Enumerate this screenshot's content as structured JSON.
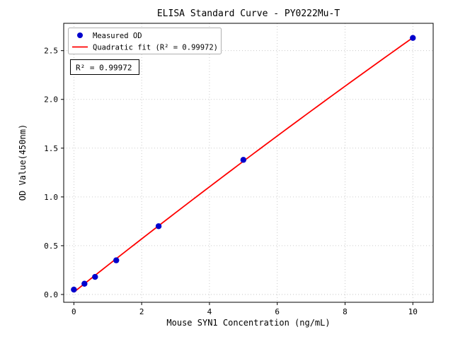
{
  "figure": {
    "background": "#ffffff"
  },
  "chart_data": {
    "type": "scatter",
    "title": "ELISA Standard Curve - PY0222Mu-T",
    "xlabel": "Mouse SYN1 Concentration (ng/mL)",
    "ylabel": "OD Value(450nm)",
    "xlim": [
      -0.3,
      10.6
    ],
    "ylim": [
      -0.08,
      2.78
    ],
    "grid": "dotted",
    "legend_position": "upper left",
    "x_ticks": {
      "values": [
        0,
        2,
        4,
        6,
        8,
        10
      ],
      "labels": [
        "0",
        "2",
        "4",
        "6",
        "8",
        "10"
      ]
    },
    "y_ticks": {
      "values": [
        0,
        0.5,
        1.0,
        1.5,
        2.0,
        2.5
      ],
      "labels": [
        "0.0",
        "0.5",
        "1.0",
        "1.5",
        "2.0",
        "2.5"
      ]
    },
    "series": [
      {
        "name": "Measured OD",
        "plot": "scatter",
        "marker": "circle",
        "color": "#0000cd",
        "x": [
          0,
          0.3125,
          0.625,
          1.25,
          2.5,
          5,
          10
        ],
        "y": [
          0.05,
          0.11,
          0.18,
          0.35,
          0.7,
          1.38,
          2.63
        ]
      },
      {
        "name": "Quadratic fit (R² = 0.99972)",
        "plot": "line",
        "fit": "quadratic",
        "color": "#ff0000"
      }
    ],
    "annotation": "R² = 0.99972"
  }
}
